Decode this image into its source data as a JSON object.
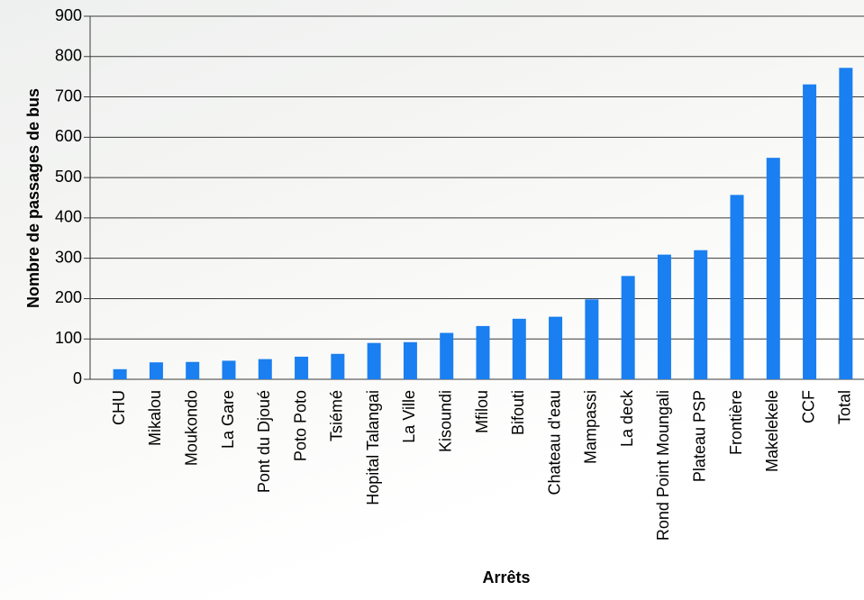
{
  "chart_data": {
    "type": "bar",
    "x_label": "Arrêts",
    "y_label": "Nombre de passages de bus",
    "categories": [
      "CHU",
      "Mikalou",
      "Moukondo",
      "La Gare",
      "Pont du Djoué",
      "Poto Poto",
      "Tsiémé",
      "Hopital Talangai",
      "La Ville",
      "Kisoundi",
      "Mfilou",
      "Bifouti",
      "Chateau d'eau",
      "Mampassi",
      "La deck",
      "Rond Point Moungali",
      "Plateau PSP",
      "Frontière",
      "Makelekele",
      "CCF",
      "Total"
    ],
    "values": [
      25,
      42,
      43,
      46,
      50,
      56,
      63,
      90,
      92,
      115,
      132,
      150,
      155,
      198,
      256,
      309,
      320,
      457,
      549,
      731,
      772
    ],
    "color": "#1a7ff0",
    "ylim": [
      0,
      900
    ],
    "yticks": [
      0,
      100,
      200,
      300,
      400,
      500,
      600,
      700,
      800,
      900
    ],
    "grid": true
  }
}
